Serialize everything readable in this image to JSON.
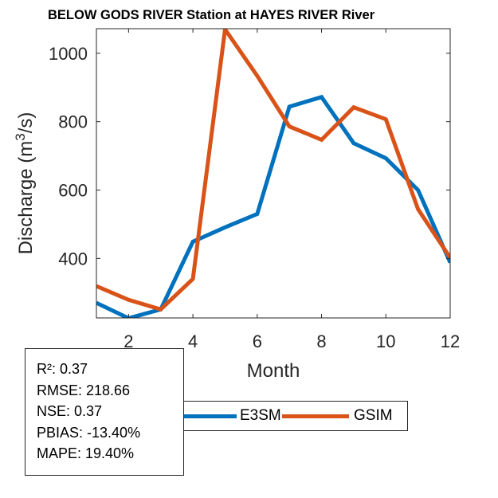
{
  "title": "BELOW GODS RIVER  Station at  HAYES RIVER  River",
  "stats": {
    "r2": "R²: 0.37",
    "rmse": "RMSE: 218.66",
    "nse": "NSE: 0.37",
    "pbias": "PBIAS: -13.40%",
    "mape": "MAPE: 19.40%"
  },
  "chart_data": {
    "type": "line",
    "title": "BELOW GODS RIVER  Station at  HAYES RIVER  River",
    "xlabel": "Month",
    "ylabel": "Discharge (m³/s)",
    "ylabel_main": "Discharge (m",
    "ylabel_sup": "3",
    "ylabel_end": "/s)",
    "xlim": [
      1,
      12
    ],
    "ylim": [
      226,
      1072
    ],
    "xticks": [
      2,
      4,
      6,
      8,
      10,
      12
    ],
    "xtick_labels": [
      "2",
      "4",
      "6",
      "8",
      "10",
      "12"
    ],
    "yticks": [
      400,
      600,
      800,
      1000
    ],
    "ytick_labels": [
      "400",
      "600",
      "800",
      "1000"
    ],
    "grid": false,
    "legend_position": "bottom-center",
    "x": [
      1,
      2,
      3,
      4,
      5,
      6,
      7,
      8,
      9,
      10,
      11,
      12
    ],
    "series": [
      {
        "name": "E3SM",
        "color": "#0072BD",
        "values": [
          270,
          225,
          251,
          449,
          491,
          530,
          844,
          872,
          737,
          693,
          600,
          388
        ]
      },
      {
        "name": "GSIM",
        "color": "#D95319",
        "values": [
          319,
          279,
          251,
          340,
          1070,
          934,
          786,
          747,
          842,
          807,
          544,
          402
        ]
      }
    ]
  }
}
